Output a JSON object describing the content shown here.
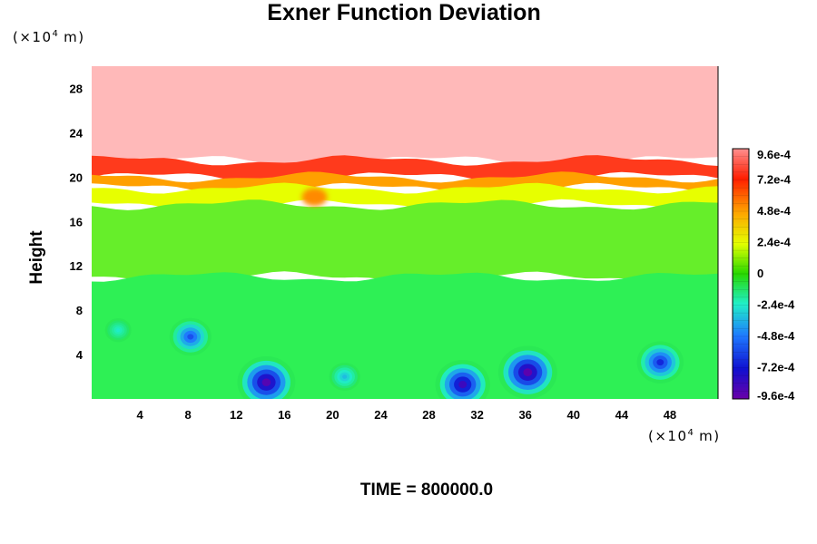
{
  "chart_data": {
    "type": "heatmap",
    "title": "Exner Function Deviation",
    "ylabel": "Height",
    "x_unit": {
      "base": "(×10",
      "exp": "4",
      "tail": " m)"
    },
    "y_unit": {
      "base": "(×10",
      "exp": "4",
      "tail": " m)"
    },
    "xlim": [
      0,
      52
    ],
    "ylim": [
      0,
      30
    ],
    "x_ticks": [
      4,
      8,
      12,
      16,
      20,
      24,
      28,
      32,
      36,
      40,
      44,
      48
    ],
    "y_ticks": [
      4,
      8,
      12,
      16,
      20,
      24,
      28
    ],
    "colorbar": {
      "range": [
        -0.00096,
        0.00096
      ],
      "labels": [
        "9.6e-4",
        "7.2e-4",
        "4.8e-4",
        "2.4e-4",
        "0",
        "-2.4e-4",
        "-4.8e-4",
        "-7.2e-4",
        "-9.6e-4"
      ],
      "label_values": [
        0.00096,
        0.00072,
        0.00048,
        0.00024,
        0,
        -0.00024,
        -0.00048,
        -0.00072,
        -0.00096
      ]
    },
    "layers": [
      {
        "from": 21.5,
        "to": 30,
        "value": "above 9.6e-4",
        "color": "#ffb9b9"
      },
      {
        "from": 20,
        "to": 21.5,
        "value": 0.00084,
        "color": "#ff3a1c"
      },
      {
        "from": 19,
        "to": 20,
        "value": 0.00055,
        "color": "#ffa000"
      },
      {
        "from": 17.5,
        "to": 19,
        "value": 0.00025,
        "color": "#e7ff00"
      },
      {
        "from": 11,
        "to": 17.5,
        "value": 5e-05,
        "color": "#66ee2a"
      },
      {
        "from": 0,
        "to": 11,
        "value": -5e-05,
        "color": "#2ef055"
      }
    ],
    "features": [
      {
        "name": "low-pressure center",
        "x": 14.5,
        "y": 1.5,
        "value": -0.00092
      },
      {
        "name": "low-pressure center",
        "x": 30.8,
        "y": 1.3,
        "value": -0.00085
      },
      {
        "name": "low-pressure center",
        "x": 36.2,
        "y": 2.4,
        "value": -0.00094
      },
      {
        "name": "low-pressure center",
        "x": 47.2,
        "y": 3.3,
        "value": -0.00068
      },
      {
        "name": "low-pressure center",
        "x": 8.2,
        "y": 5.6,
        "value": -0.00058
      },
      {
        "name": "low-pressure center",
        "x": 21.0,
        "y": 2.0,
        "value": -0.00035
      },
      {
        "name": "low-pressure center",
        "x": 2.2,
        "y": 6.2,
        "value": -0.00025
      }
    ]
  },
  "footer": "TIME = 800000.0"
}
